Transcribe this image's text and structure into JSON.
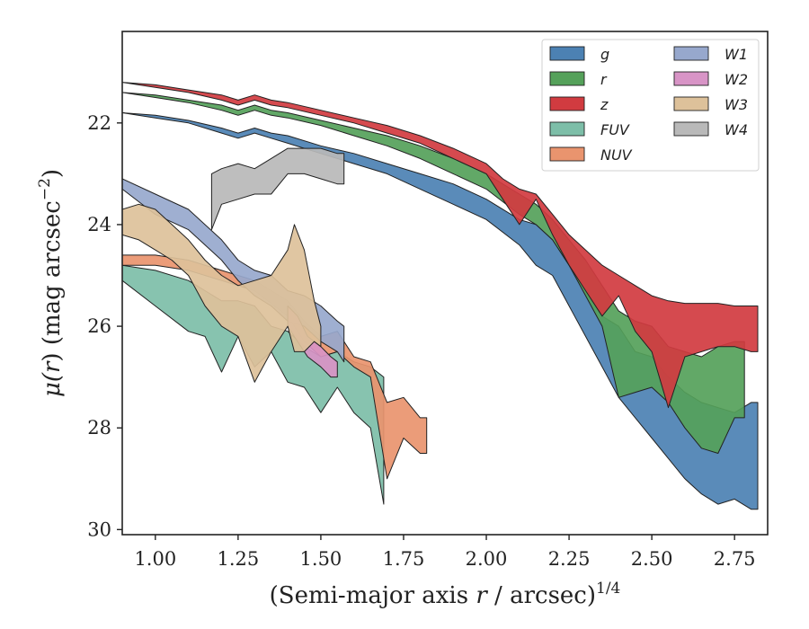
{
  "chart_data": {
    "type": "area",
    "xlabel_text": "(Semi-major axis ",
    "xlabel_var": "r",
    "xlabel_tail": " / arcsec)",
    "xlabel_exp": "1/4",
    "ylabel_pre": "μ(",
    "ylabel_var": "r",
    "ylabel_post": ") (mag arcsec",
    "ylabel_exp": "−2",
    "ylabel_close": ")",
    "xlim": [
      0.9,
      2.85
    ],
    "ylim": [
      30.1,
      20.2
    ],
    "y_inverted": true,
    "xticks": [
      1.0,
      1.25,
      1.5,
      1.75,
      2.0,
      2.25,
      2.5,
      2.75
    ],
    "xtick_labels": [
      "1.00",
      "1.25",
      "1.50",
      "1.75",
      "2.00",
      "2.25",
      "2.50",
      "2.75"
    ],
    "yticks": [
      22,
      24,
      26,
      28,
      30
    ],
    "ytick_labels": [
      "22",
      "24",
      "26",
      "28",
      "30"
    ],
    "grid": false,
    "legend_placement": "top-right",
    "legend_columns": 2,
    "series": [
      {
        "name": "g",
        "color": "#4c81b3",
        "x": [
          0.9,
          1.0,
          1.1,
          1.2,
          1.25,
          1.3,
          1.35,
          1.4,
          1.5,
          1.6,
          1.7,
          1.8,
          1.9,
          2.0,
          2.1,
          2.15,
          2.2,
          2.25,
          2.3,
          2.35,
          2.4,
          2.45,
          2.5,
          2.55,
          2.6,
          2.65,
          2.7,
          2.75,
          2.8,
          2.82
        ],
        "y_upper": [
          21.8,
          21.85,
          21.95,
          22.1,
          22.2,
          22.1,
          22.2,
          22.25,
          22.45,
          22.6,
          22.8,
          23.0,
          23.2,
          23.5,
          23.9,
          24.0,
          24.3,
          24.8,
          25.3,
          25.8,
          26.0,
          26.5,
          26.6,
          27.0,
          27.3,
          27.5,
          27.6,
          27.7,
          27.5,
          27.5
        ],
        "y_lower": [
          21.8,
          21.9,
          22.0,
          22.2,
          22.3,
          22.2,
          22.3,
          22.4,
          22.6,
          22.8,
          23.0,
          23.3,
          23.6,
          23.9,
          24.4,
          24.8,
          25.0,
          25.6,
          26.2,
          26.8,
          27.4,
          27.8,
          28.2,
          28.6,
          29.0,
          29.3,
          29.5,
          29.4,
          29.6,
          29.6
        ]
      },
      {
        "name": "r",
        "color": "#55a15a",
        "x": [
          0.9,
          1.0,
          1.1,
          1.2,
          1.25,
          1.3,
          1.35,
          1.4,
          1.5,
          1.6,
          1.7,
          1.8,
          1.9,
          2.0,
          2.1,
          2.15,
          2.2,
          2.25,
          2.3,
          2.35,
          2.4,
          2.45,
          2.5,
          2.55,
          2.6,
          2.65,
          2.7,
          2.75,
          2.78
        ],
        "y_upper": [
          21.4,
          21.45,
          21.55,
          21.65,
          21.75,
          21.65,
          21.75,
          21.8,
          21.95,
          22.1,
          22.25,
          22.45,
          22.7,
          23.0,
          23.4,
          23.6,
          23.9,
          24.3,
          24.7,
          25.2,
          25.7,
          25.9,
          26.0,
          26.4,
          26.5,
          26.6,
          26.4,
          26.3,
          26.3
        ],
        "y_lower": [
          21.4,
          21.5,
          21.6,
          21.75,
          21.85,
          21.75,
          21.85,
          21.9,
          22.05,
          22.25,
          22.45,
          22.7,
          23.0,
          23.3,
          23.8,
          24.0,
          24.3,
          24.8,
          25.4,
          26.0,
          27.4,
          27.3,
          27.2,
          27.5,
          28.0,
          28.4,
          28.5,
          27.8,
          27.8
        ]
      },
      {
        "name": "z",
        "color": "#d13b40",
        "x": [
          0.9,
          1.0,
          1.1,
          1.2,
          1.25,
          1.3,
          1.35,
          1.4,
          1.5,
          1.6,
          1.7,
          1.8,
          1.9,
          2.0,
          2.05,
          2.1,
          2.15,
          2.2,
          2.25,
          2.3,
          2.35,
          2.4,
          2.45,
          2.5,
          2.55,
          2.6,
          2.65,
          2.7,
          2.75,
          2.8,
          2.82
        ],
        "y_upper": [
          21.2,
          21.25,
          21.35,
          21.45,
          21.55,
          21.45,
          21.55,
          21.6,
          21.75,
          21.9,
          22.05,
          22.25,
          22.5,
          22.8,
          23.1,
          23.3,
          23.4,
          23.8,
          24.2,
          24.5,
          24.8,
          25.0,
          25.2,
          25.4,
          25.5,
          25.55,
          25.55,
          25.55,
          25.6,
          25.6,
          25.6
        ],
        "y_lower": [
          21.2,
          21.3,
          21.4,
          21.55,
          21.65,
          21.55,
          21.65,
          21.7,
          21.85,
          22.0,
          22.2,
          22.4,
          22.7,
          23.0,
          23.5,
          24.0,
          23.5,
          24.2,
          24.8,
          25.3,
          25.8,
          25.4,
          26.1,
          26.5,
          27.6,
          26.6,
          26.5,
          26.4,
          26.4,
          26.5,
          26.5
        ]
      },
      {
        "name": "FUV",
        "color": "#7dbea8",
        "x": [
          0.9,
          1.0,
          1.1,
          1.15,
          1.2,
          1.25,
          1.3,
          1.35,
          1.4,
          1.45,
          1.5,
          1.55,
          1.6,
          1.65,
          1.69
        ],
        "y_upper": [
          24.8,
          24.9,
          25.1,
          25.3,
          25.5,
          25.5,
          25.6,
          26.0,
          26.1,
          26.4,
          26.6,
          26.5,
          26.7,
          26.8,
          27.0
        ],
        "y_lower": [
          25.1,
          25.6,
          26.1,
          26.2,
          26.9,
          26.2,
          26.8,
          26.5,
          27.1,
          27.2,
          27.7,
          27.2,
          27.7,
          28.0,
          29.5
        ]
      },
      {
        "name": "NUV",
        "color": "#e9946e",
        "x": [
          0.9,
          1.0,
          1.1,
          1.2,
          1.3,
          1.4,
          1.45,
          1.5,
          1.55,
          1.6,
          1.65,
          1.7,
          1.75,
          1.8,
          1.82
        ],
        "y_upper": [
          24.6,
          24.6,
          24.7,
          24.9,
          25.1,
          25.5,
          25.9,
          26.2,
          26.1,
          26.6,
          26.7,
          27.5,
          27.4,
          27.8,
          27.8
        ],
        "y_lower": [
          24.8,
          24.8,
          24.9,
          25.1,
          25.3,
          25.8,
          26.3,
          26.6,
          26.5,
          26.8,
          27.0,
          29.0,
          28.2,
          28.5,
          28.5
        ]
      },
      {
        "name": "W1",
        "color": "#97a8cd",
        "x": [
          0.9,
          1.0,
          1.1,
          1.2,
          1.25,
          1.3,
          1.35,
          1.4,
          1.45,
          1.5,
          1.55,
          1.57
        ],
        "y_upper": [
          23.1,
          23.4,
          23.7,
          24.3,
          24.7,
          24.9,
          25.0,
          25.3,
          25.4,
          25.6,
          25.9,
          26.0
        ],
        "y_lower": [
          23.3,
          23.8,
          24.1,
          24.7,
          25.1,
          25.4,
          25.6,
          25.9,
          26.0,
          26.3,
          26.5,
          26.7
        ]
      },
      {
        "name": "W2",
        "color": "#d894c6",
        "x": [
          1.4,
          1.43,
          1.46,
          1.5,
          1.53,
          1.55
        ],
        "y_upper": [
          25.6,
          25.8,
          26.2,
          26.4,
          26.6,
          26.7
        ],
        "y_lower": [
          26.0,
          26.3,
          26.6,
          26.8,
          27.0,
          27.0
        ]
      },
      {
        "name": "W3",
        "color": "#ddc19a",
        "x": [
          0.9,
          0.95,
          1.0,
          1.05,
          1.1,
          1.15,
          1.2,
          1.25,
          1.3,
          1.35,
          1.4,
          1.42,
          1.45,
          1.48,
          1.5
        ],
        "y_upper": [
          23.7,
          23.6,
          23.7,
          24.0,
          24.3,
          24.7,
          25.0,
          25.2,
          25.1,
          25.0,
          24.5,
          24.0,
          24.5,
          25.5,
          26.0
        ],
        "y_lower": [
          24.2,
          24.3,
          24.5,
          24.7,
          25.0,
          25.6,
          26.0,
          26.2,
          27.1,
          26.5,
          26.0,
          26.5,
          26.5,
          26.3,
          26.4
        ]
      },
      {
        "name": "W4",
        "color": "#b9b9b9",
        "x": [
          1.17,
          1.2,
          1.25,
          1.3,
          1.35,
          1.4,
          1.45,
          1.5,
          1.55,
          1.57
        ],
        "y_upper": [
          23.0,
          22.9,
          22.8,
          22.9,
          22.7,
          22.5,
          22.5,
          22.5,
          22.6,
          22.6
        ],
        "y_lower": [
          24.1,
          23.6,
          23.5,
          23.4,
          23.4,
          23.0,
          23.0,
          23.1,
          23.2,
          23.2
        ]
      }
    ]
  }
}
